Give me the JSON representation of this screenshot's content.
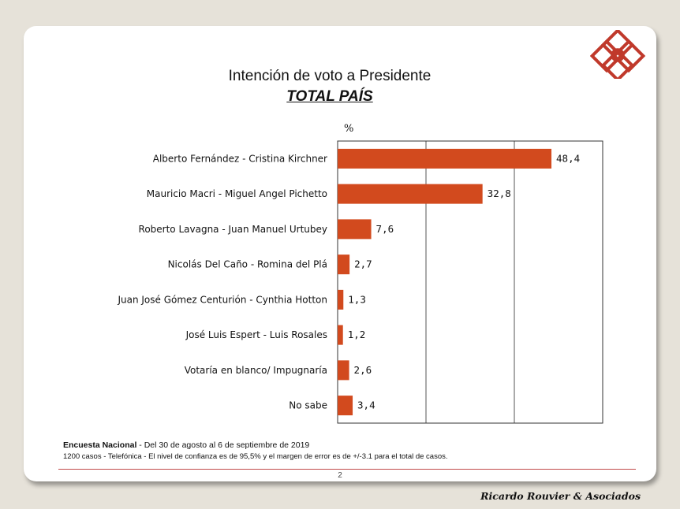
{
  "chart_data": {
    "type": "bar",
    "orientation": "horizontal",
    "title": "Intención de voto a Presidente",
    "subtitle": "TOTAL PAÍS",
    "unit_label": "%",
    "categories": [
      "Alberto Fernández - Cristina Kirchner",
      "Mauricio Macri - Miguel Angel Pichetto",
      "Roberto Lavagna - Juan Manuel Urtubey",
      "Nicolás Del Caño - Romina del Plá",
      "Juan José Gómez Centurión - Cynthia  Hotton",
      "José Luis Espert - Luis Rosales",
      "Votaría en blanco/ Impugnaría",
      "No sabe"
    ],
    "values": [
      48.4,
      32.8,
      7.6,
      2.7,
      1.3,
      1.2,
      2.6,
      3.4
    ],
    "value_labels": [
      "48,4",
      "32,8",
      "7,6",
      "2,7",
      "1,3",
      "1,2",
      "2,6",
      "3,4"
    ],
    "xlim": [
      0,
      60
    ],
    "grid_x": [
      20,
      40
    ],
    "bar_color": "#d24a1e"
  },
  "footer": {
    "survey_name": "Encuesta Nacional",
    "survey_dates": " - Del 30 de agosto al 6 de septiembre de 2019",
    "methodology": "1200 casos - Telefónica  - El nivel de confianza es de 95,5% y el margen de error es de +/-3.1 para el total de casos.",
    "page_number": "2",
    "brand": "Ricardo Rouvier & Asociados"
  },
  "colors": {
    "accent": "#c0392b",
    "background": "#e6e2d9"
  }
}
